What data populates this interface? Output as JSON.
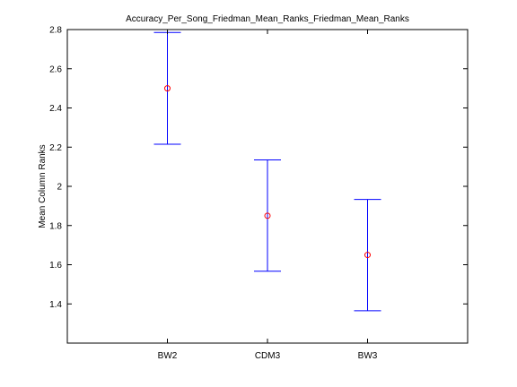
{
  "chart_data": {
    "type": "errorbar",
    "title": "Accuracy_Per_Song_Friedman_Mean_Ranks_Friedman_Mean_Ranks",
    "xlabel": "",
    "ylabel": "Mean Column Ranks",
    "categories": [
      "BW2",
      "CDM3",
      "BW3"
    ],
    "series": [
      {
        "values": [
          2.5,
          1.85,
          1.65
        ],
        "lower": [
          2.215,
          1.567,
          1.365
        ],
        "upper": [
          2.785,
          2.135,
          1.933
        ]
      }
    ],
    "ylim": [
      1.2,
      2.8
    ],
    "yticks": [
      1.4,
      1.6,
      1.8,
      2.0,
      2.2,
      2.4,
      2.6,
      2.8
    ],
    "ytick_labels": [
      "1.4",
      "1.6",
      "1.8",
      "2",
      "2.2",
      "2.4",
      "2.6",
      "2.8"
    ],
    "grid": false,
    "colors": {
      "errorbar": "#0000ff",
      "marker": "#ff0000",
      "axes": "#000000"
    }
  }
}
